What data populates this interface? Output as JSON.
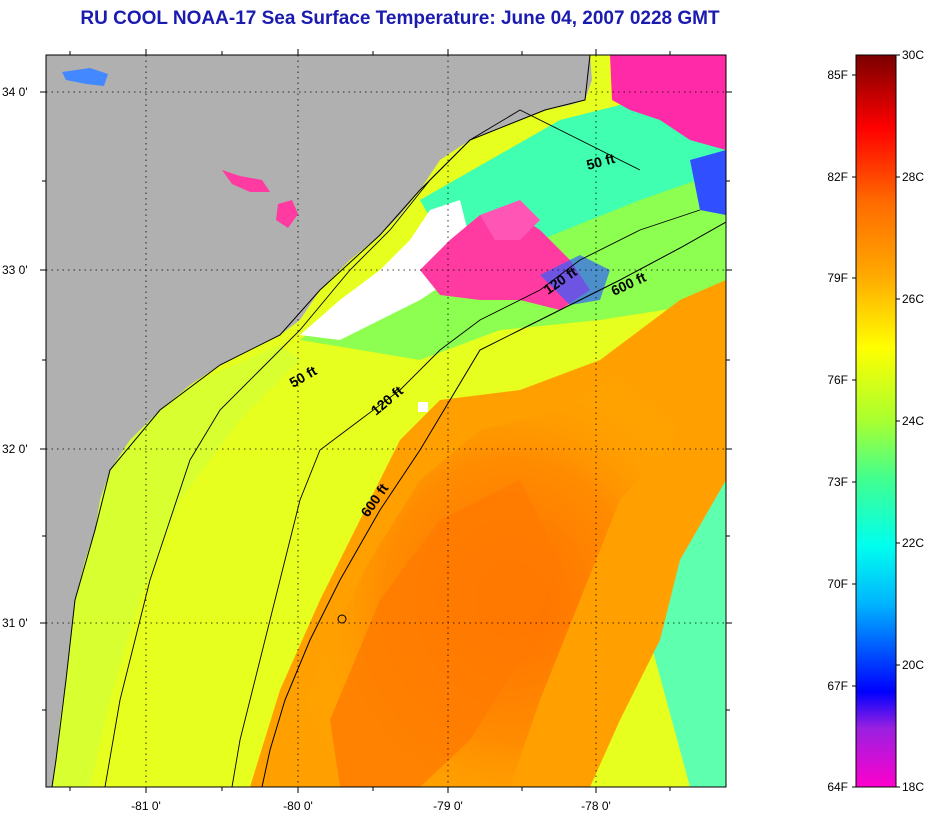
{
  "title": "RU COOL  NOAA-17  Sea Surface Temperature:  June 04, 2007 0228 GMT",
  "map": {
    "lat_labels": [
      "34 0'",
      "33 0'",
      "32 0'",
      "31 0'"
    ],
    "lon_labels": [
      "-81 0'",
      "-80 0'",
      "-79 0'",
      "-78 0'"
    ],
    "depth_labels": [
      "50 ft",
      "50 ft",
      "120 ft",
      "120 ft",
      "600 ft",
      "600 ft"
    ]
  },
  "colorbar": {
    "fahrenheit_labels": [
      "85F",
      "82F",
      "79F",
      "76F",
      "73F",
      "70F",
      "67F",
      "64F"
    ],
    "celsius_labels": [
      "30C",
      "28C",
      "26C",
      "24C",
      "22C",
      "20C",
      "18C"
    ]
  },
  "colors": {
    "land": "#b0b0b0",
    "cloud_mask": "#ffffff",
    "title": "#1b1bb0"
  }
}
